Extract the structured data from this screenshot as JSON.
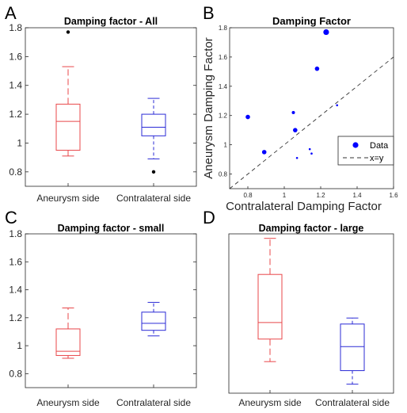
{
  "colors": {
    "aneurysm": "#e8474a",
    "contralateral": "#2b2bd6",
    "axis": "#262626",
    "marker": "#0000ff"
  },
  "panels": {
    "A": {
      "letter": "A"
    },
    "B": {
      "letter": "B"
    },
    "C": {
      "letter": "C"
    },
    "D": {
      "letter": "D"
    }
  },
  "chart_data": [
    {
      "panel": "A",
      "type": "box",
      "title": "Damping factor - All",
      "categories": [
        "Aneurysm side",
        "Contralateral side"
      ],
      "ylim": [
        0.7,
        1.8
      ],
      "yticks": [
        "0.8",
        "1",
        "1.2",
        "1.4",
        "1.6",
        "1.8"
      ],
      "boxes": [
        {
          "name": "Aneurysm side",
          "whisker_low": 0.91,
          "q1": 0.95,
          "median": 1.15,
          "q3": 1.27,
          "whisker_high": 1.53,
          "outliers": [
            1.77
          ]
        },
        {
          "name": "Contralateral side",
          "whisker_low": 0.89,
          "q1": 1.05,
          "median": 1.11,
          "q3": 1.2,
          "whisker_high": 1.31,
          "outliers": [
            0.8
          ]
        }
      ]
    },
    {
      "panel": "B",
      "type": "scatter",
      "title": "Damping Factor",
      "xlabel": "Contralateral Damping Factor",
      "ylabel": "Aneurysm Damping Factor",
      "xlim": [
        0.7,
        1.6
      ],
      "ylim": [
        0.7,
        1.8
      ],
      "xticks": [
        "0.8",
        "1",
        "1.2",
        "1.4",
        "1.6"
      ],
      "yticks": [
        "0.8",
        "1",
        "1.2",
        "1.4",
        "1.6",
        "1.8"
      ],
      "legend": {
        "placement": "bottom-right",
        "entries": [
          "Data",
          "x=y"
        ]
      },
      "points": [
        {
          "x": 0.8,
          "y": 1.19,
          "size": "medium"
        },
        {
          "x": 0.89,
          "y": 0.95,
          "size": "medium"
        },
        {
          "x": 1.05,
          "y": 1.22,
          "size": "small"
        },
        {
          "x": 1.06,
          "y": 1.1,
          "size": "medium"
        },
        {
          "x": 1.07,
          "y": 0.91,
          "size": "tiny"
        },
        {
          "x": 1.14,
          "y": 0.97,
          "size": "tiny"
        },
        {
          "x": 1.15,
          "y": 0.94,
          "size": "tiny"
        },
        {
          "x": 1.18,
          "y": 1.52,
          "size": "medium"
        },
        {
          "x": 1.23,
          "y": 1.77,
          "size": "large"
        },
        {
          "x": 1.29,
          "y": 1.27,
          "size": "tiny"
        }
      ]
    },
    {
      "panel": "C",
      "type": "box",
      "title": "Damping factor - small",
      "categories": [
        "Aneurysm side",
        "Contralateral side"
      ],
      "ylim": [
        0.7,
        1.8
      ],
      "yticks": [
        "0.8",
        "1",
        "1.2",
        "1.4",
        "1.6",
        "1.8"
      ],
      "boxes": [
        {
          "name": "Aneurysm side",
          "whisker_low": 0.91,
          "q1": 0.93,
          "median": 0.96,
          "q3": 1.12,
          "whisker_high": 1.27,
          "outliers": []
        },
        {
          "name": "Contralateral side",
          "whisker_low": 1.07,
          "q1": 1.11,
          "median": 1.16,
          "q3": 1.24,
          "whisker_high": 1.31,
          "outliers": []
        }
      ]
    },
    {
      "panel": "D",
      "type": "box",
      "title": "Damping factor - large",
      "categories": [
        "Aneurysm side",
        "Contralateral side"
      ],
      "ylim": [
        0.74,
        1.8
      ],
      "yticks": [],
      "boxes": [
        {
          "name": "Aneurysm side",
          "whisker_low": 0.95,
          "q1": 1.1,
          "median": 1.21,
          "q3": 1.53,
          "whisker_high": 1.77,
          "outliers": []
        },
        {
          "name": "Contralateral side",
          "whisker_low": 0.8,
          "q1": 0.89,
          "median": 1.05,
          "q3": 1.2,
          "whisker_high": 1.24,
          "outliers": []
        }
      ]
    }
  ]
}
